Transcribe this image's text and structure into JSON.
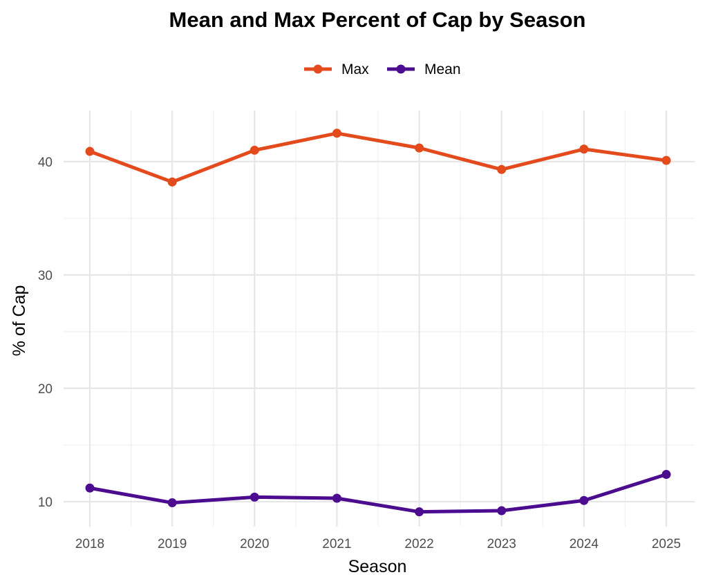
{
  "chart_data": {
    "type": "line",
    "title": "Mean and Max Percent of Cap by Season",
    "xlabel": "Season",
    "ylabel": "% of Cap",
    "x": [
      "2018",
      "2019",
      "2020",
      "2021",
      "2022",
      "2023",
      "2024",
      "2025"
    ],
    "y_ticks": [
      10,
      20,
      30,
      40
    ],
    "ylim": [
      7.8,
      44.5
    ],
    "grid": true,
    "legend_position": "top",
    "series": [
      {
        "name": "Max",
        "color": "#E34A1C",
        "values": [
          40.9,
          38.2,
          41.0,
          42.5,
          41.2,
          39.3,
          41.1,
          40.1
        ]
      },
      {
        "name": "Mean",
        "color": "#4B0C8F",
        "values": [
          11.2,
          9.9,
          10.4,
          10.3,
          9.1,
          9.2,
          10.1,
          12.4
        ]
      }
    ]
  }
}
